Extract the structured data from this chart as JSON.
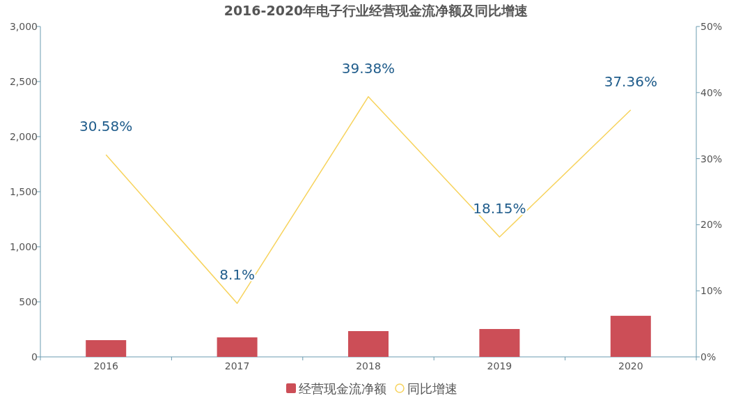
{
  "chart_data": {
    "type": "bar",
    "title": "2016-2020年电子行业经营现金流净额及同比增速",
    "categories": [
      "2016",
      "2017",
      "2018",
      "2019",
      "2020"
    ],
    "series": [
      {
        "name": "经营现金流净额",
        "color": "#cc4e57",
        "values": [
          152,
          177,
          234,
          253,
          373
        ]
      },
      {
        "name": "同比增速",
        "type": "line",
        "axis": "y2",
        "color": "#f7d35c",
        "values": [
          30.58,
          8.1,
          39.38,
          18.15,
          37.36
        ],
        "value_labels": [
          "30.58%",
          "8.1%",
          "39.38%",
          "18.15%",
          "37.36%"
        ]
      }
    ],
    "ylim": [
      0,
      3000
    ],
    "yticks": [
      0,
      500,
      {
        "value": 1000,
        "label": "1,000"
      },
      {
        "value": 1500,
        "label": "1,500"
      },
      {
        "value": 2000,
        "label": "2,000"
      },
      {
        "value": 2500,
        "label": "2,500"
      },
      {
        "value": 3000,
        "label": "3,000"
      }
    ],
    "y2lim": [
      0,
      50
    ],
    "y2ticks": [
      {
        "value": 0,
        "label": "0%"
      },
      {
        "value": 10,
        "label": "10%"
      },
      {
        "value": 20,
        "label": "20%"
      },
      {
        "value": 30,
        "label": "30%"
      },
      {
        "value": 40,
        "label": "40%"
      },
      {
        "value": 50,
        "label": "50%"
      }
    ],
    "legend": "bottom",
    "grid": false,
    "marker": "none",
    "line_style": "solid"
  }
}
